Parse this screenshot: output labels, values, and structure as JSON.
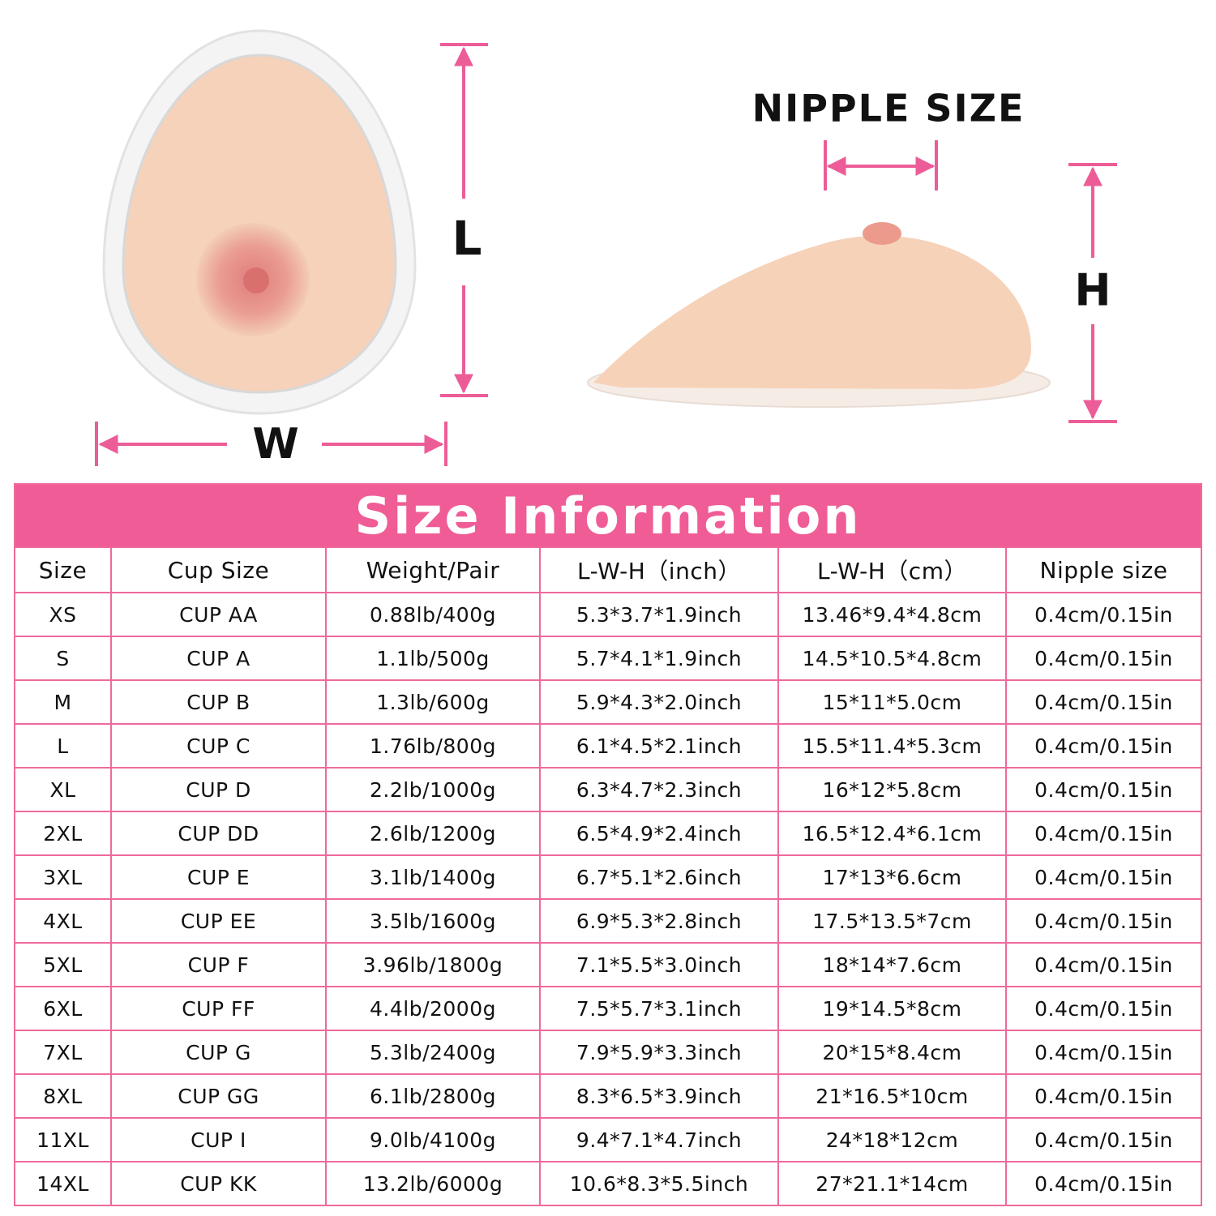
{
  "labels": {
    "length": "L",
    "width": "W",
    "height": "H",
    "nipple": "NIPPLE SIZE"
  },
  "table": {
    "title": "Size Information",
    "headers": [
      "Size",
      "Cup Size",
      "Weight/Pair",
      "L-W-H（inch）",
      "L-W-H（cm）",
      "Nipple size"
    ],
    "rows": [
      [
        "XS",
        "CUP AA",
        "0.88lb/400g",
        "5.3*3.7*1.9inch",
        "13.46*9.4*4.8cm",
        "0.4cm/0.15in"
      ],
      [
        "S",
        "CUP A",
        "1.1lb/500g",
        "5.7*4.1*1.9inch",
        "14.5*10.5*4.8cm",
        "0.4cm/0.15in"
      ],
      [
        "M",
        "CUP B",
        "1.3lb/600g",
        "5.9*4.3*2.0inch",
        "15*11*5.0cm",
        "0.4cm/0.15in"
      ],
      [
        "L",
        "CUP C",
        "1.76lb/800g",
        "6.1*4.5*2.1inch",
        "15.5*11.4*5.3cm",
        "0.4cm/0.15in"
      ],
      [
        "XL",
        "CUP D",
        "2.2lb/1000g",
        "6.3*4.7*2.3inch",
        "16*12*5.8cm",
        "0.4cm/0.15in"
      ],
      [
        "2XL",
        "CUP DD",
        "2.6lb/1200g",
        "6.5*4.9*2.4inch",
        "16.5*12.4*6.1cm",
        "0.4cm/0.15in"
      ],
      [
        "3XL",
        "CUP E",
        "3.1lb/1400g",
        "6.7*5.1*2.6inch",
        "17*13*6.6cm",
        "0.4cm/0.15in"
      ],
      [
        "4XL",
        "CUP EE",
        "3.5lb/1600g",
        "6.9*5.3*2.8inch",
        "17.5*13.5*7cm",
        "0.4cm/0.15in"
      ],
      [
        "5XL",
        "CUP F",
        "3.96lb/1800g",
        "7.1*5.5*3.0inch",
        "18*14*7.6cm",
        "0.4cm/0.15in"
      ],
      [
        "6XL",
        "CUP FF",
        "4.4lb/2000g",
        "7.5*5.7*3.1inch",
        "19*14.5*8cm",
        "0.4cm/0.15in"
      ],
      [
        "7XL",
        "CUP G",
        "5.3lb/2400g",
        "7.9*5.9*3.3inch",
        "20*15*8.4cm",
        "0.4cm/0.15in"
      ],
      [
        "8XL",
        "CUP GG",
        "6.1lb/2800g",
        "8.3*6.5*3.9inch",
        "21*16.5*10cm",
        "0.4cm/0.15in"
      ],
      [
        "11XL",
        "CUP I",
        "9.0lb/4100g",
        "9.4*7.1*4.7inch",
        "24*18*12cm",
        "0.4cm/0.15in"
      ],
      [
        "14XL",
        "CUP KK",
        "13.2lb/6000g",
        "10.6*8.3*5.5inch",
        "27*21.1*14cm",
        "0.4cm/0.15in"
      ]
    ]
  }
}
